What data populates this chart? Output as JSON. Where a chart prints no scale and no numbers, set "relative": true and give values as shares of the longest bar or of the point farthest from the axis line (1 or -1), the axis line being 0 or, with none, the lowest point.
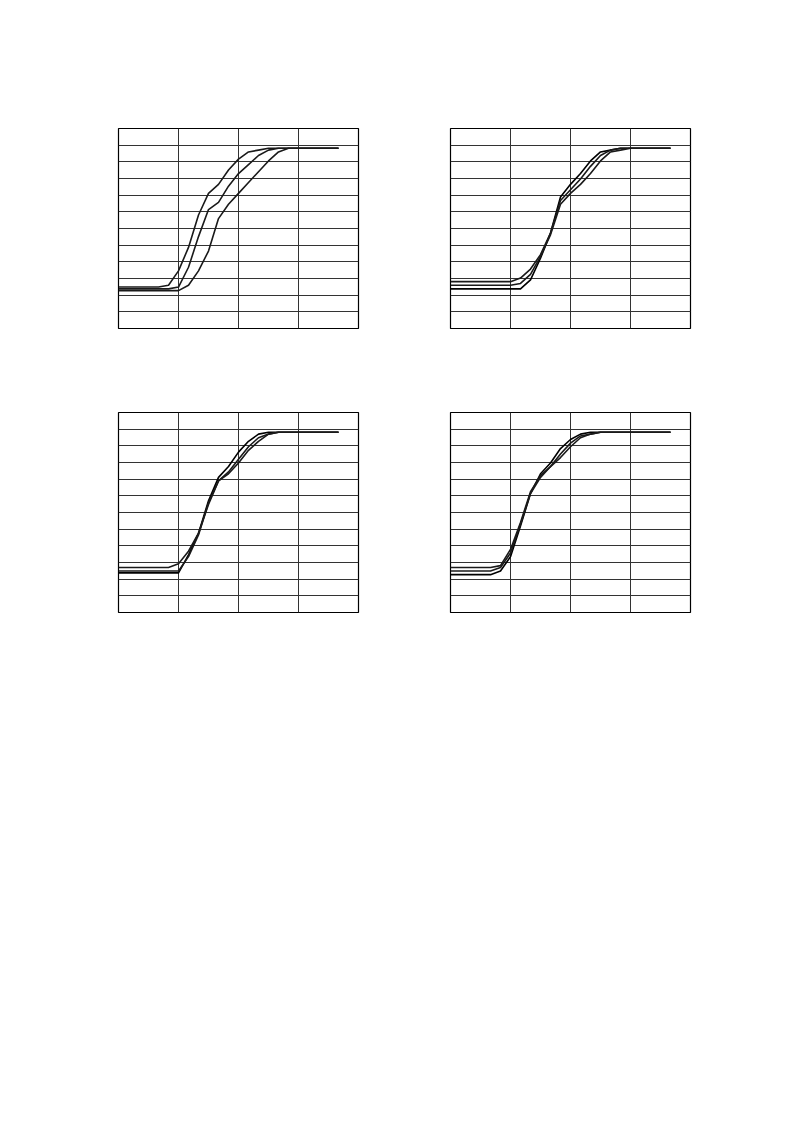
{
  "chart_data": [
    {
      "type": "line",
      "relative": true,
      "grid": true,
      "marker": "none",
      "line_style": "solid",
      "categories": [
        null,
        null,
        null,
        null,
        null,
        null,
        null,
        null,
        null,
        null,
        null,
        null,
        null,
        null,
        null,
        null,
        null,
        null,
        null,
        null,
        null,
        null,
        null,
        null,
        null
      ],
      "series": [
        {
          "color": "#1a1a1a",
          "values": [
            0.23,
            0.23,
            0.23,
            0.23,
            0.23,
            0.24,
            0.32,
            0.45,
            0.63,
            0.75,
            0.8,
            0.88,
            0.94,
            0.98,
            0.99,
            1,
            1,
            1,
            1,
            1,
            1,
            1,
            1,
            null,
            null
          ]
        },
        {
          "color": "#1a1a1a",
          "values": [
            0.22,
            0.22,
            0.22,
            0.22,
            0.22,
            0.22,
            0.23,
            0.34,
            0.51,
            0.66,
            0.7,
            0.79,
            0.86,
            0.91,
            0.96,
            0.99,
            1,
            1,
            1,
            1,
            1,
            1,
            1,
            null,
            null
          ]
        },
        {
          "color": "#1a1a1a",
          "values": [
            0.21,
            0.21,
            0.21,
            0.21,
            0.21,
            0.21,
            0.21,
            0.24,
            0.32,
            0.43,
            0.61,
            0.69,
            0.75,
            0.81,
            0.87,
            0.93,
            0.98,
            1,
            1,
            1,
            1,
            1,
            1,
            null,
            null
          ]
        }
      ]
    },
    {
      "type": "line",
      "relative": true,
      "grid": true,
      "marker": "none",
      "line_style": "solid",
      "categories": [
        null,
        null,
        null,
        null,
        null,
        null,
        null,
        null,
        null,
        null,
        null,
        null,
        null,
        null,
        null,
        null,
        null,
        null,
        null,
        null,
        null,
        null,
        null,
        null,
        null
      ],
      "series": [
        {
          "color": "#000000",
          "values": [
            0.22,
            0.22,
            0.22,
            0.22,
            0.22,
            0.22,
            0.22,
            0.22,
            0.27,
            0.39,
            0.53,
            0.73,
            0.8,
            0.86,
            0.93,
            0.98,
            0.99,
            1,
            1,
            1,
            1,
            1,
            1,
            null,
            null
          ]
        },
        {
          "color": "#1a1a1a",
          "values": [
            0.26,
            0.26,
            0.26,
            0.26,
            0.26,
            0.26,
            0.26,
            0.28,
            0.33,
            0.41,
            0.53,
            0.71,
            0.77,
            0.83,
            0.9,
            0.96,
            0.99,
            1,
            1,
            1,
            1,
            1,
            1,
            null,
            null
          ]
        },
        {
          "color": "#1a1a1a",
          "values": [
            0.24,
            0.24,
            0.24,
            0.24,
            0.24,
            0.24,
            0.24,
            0.25,
            0.3,
            0.4,
            0.52,
            0.69,
            0.75,
            0.8,
            0.86,
            0.93,
            0.98,
            0.99,
            1,
            1,
            1,
            1,
            1,
            null,
            null
          ]
        }
      ]
    },
    {
      "type": "line",
      "relative": true,
      "grid": true,
      "marker": "none",
      "line_style": "solid",
      "categories": [
        null,
        null,
        null,
        null,
        null,
        null,
        null,
        null,
        null,
        null,
        null,
        null,
        null,
        null,
        null,
        null,
        null,
        null,
        null,
        null,
        null,
        null,
        null,
        null,
        null
      ],
      "series": [
        {
          "color": "#000000",
          "values": [
            0.22,
            0.22,
            0.22,
            0.22,
            0.22,
            0.22,
            0.22,
            0.32,
            0.44,
            0.62,
            0.75,
            0.81,
            0.89,
            0.95,
            0.99,
            1,
            1,
            1,
            1,
            1,
            1,
            1,
            1,
            null,
            null
          ]
        },
        {
          "color": "#1a1a1a",
          "values": [
            0.25,
            0.25,
            0.25,
            0.25,
            0.25,
            0.25,
            0.27,
            0.34,
            0.44,
            0.6,
            0.73,
            0.78,
            0.85,
            0.92,
            0.97,
            0.99,
            1,
            1,
            1,
            1,
            1,
            1,
            1,
            null,
            null
          ]
        },
        {
          "color": "#1a1a1a",
          "values": [
            0.23,
            0.23,
            0.23,
            0.23,
            0.23,
            0.23,
            0.23,
            0.31,
            0.43,
            0.61,
            0.73,
            0.77,
            0.83,
            0.9,
            0.95,
            0.99,
            1,
            1,
            1,
            1,
            1,
            1,
            1,
            null,
            null
          ]
        }
      ]
    },
    {
      "type": "line",
      "relative": true,
      "grid": true,
      "marker": "none",
      "line_style": "solid",
      "categories": [
        null,
        null,
        null,
        null,
        null,
        null,
        null,
        null,
        null,
        null,
        null,
        null,
        null,
        null,
        null,
        null,
        null,
        null,
        null,
        null,
        null,
        null,
        null,
        null,
        null
      ],
      "series": [
        {
          "color": "#000000",
          "values": [
            0.21,
            0.21,
            0.21,
            0.21,
            0.21,
            0.23,
            0.31,
            0.48,
            0.66,
            0.77,
            0.83,
            0.91,
            0.96,
            0.99,
            1,
            1,
            1,
            1,
            1,
            1,
            1,
            1,
            1,
            null,
            null
          ]
        },
        {
          "color": "#1a1a1a",
          "values": [
            0.25,
            0.25,
            0.25,
            0.25,
            0.25,
            0.26,
            0.35,
            0.5,
            0.67,
            0.76,
            0.81,
            0.88,
            0.94,
            0.98,
            0.99,
            1,
            1,
            1,
            1,
            1,
            1,
            1,
            1,
            null,
            null
          ]
        },
        {
          "color": "#1a1a1a",
          "values": [
            0.23,
            0.23,
            0.23,
            0.23,
            0.23,
            0.25,
            0.33,
            0.49,
            0.66,
            0.75,
            0.81,
            0.86,
            0.92,
            0.97,
            0.99,
            1,
            1,
            1,
            1,
            1,
            1,
            1,
            1,
            null,
            null
          ]
        }
      ]
    }
  ]
}
